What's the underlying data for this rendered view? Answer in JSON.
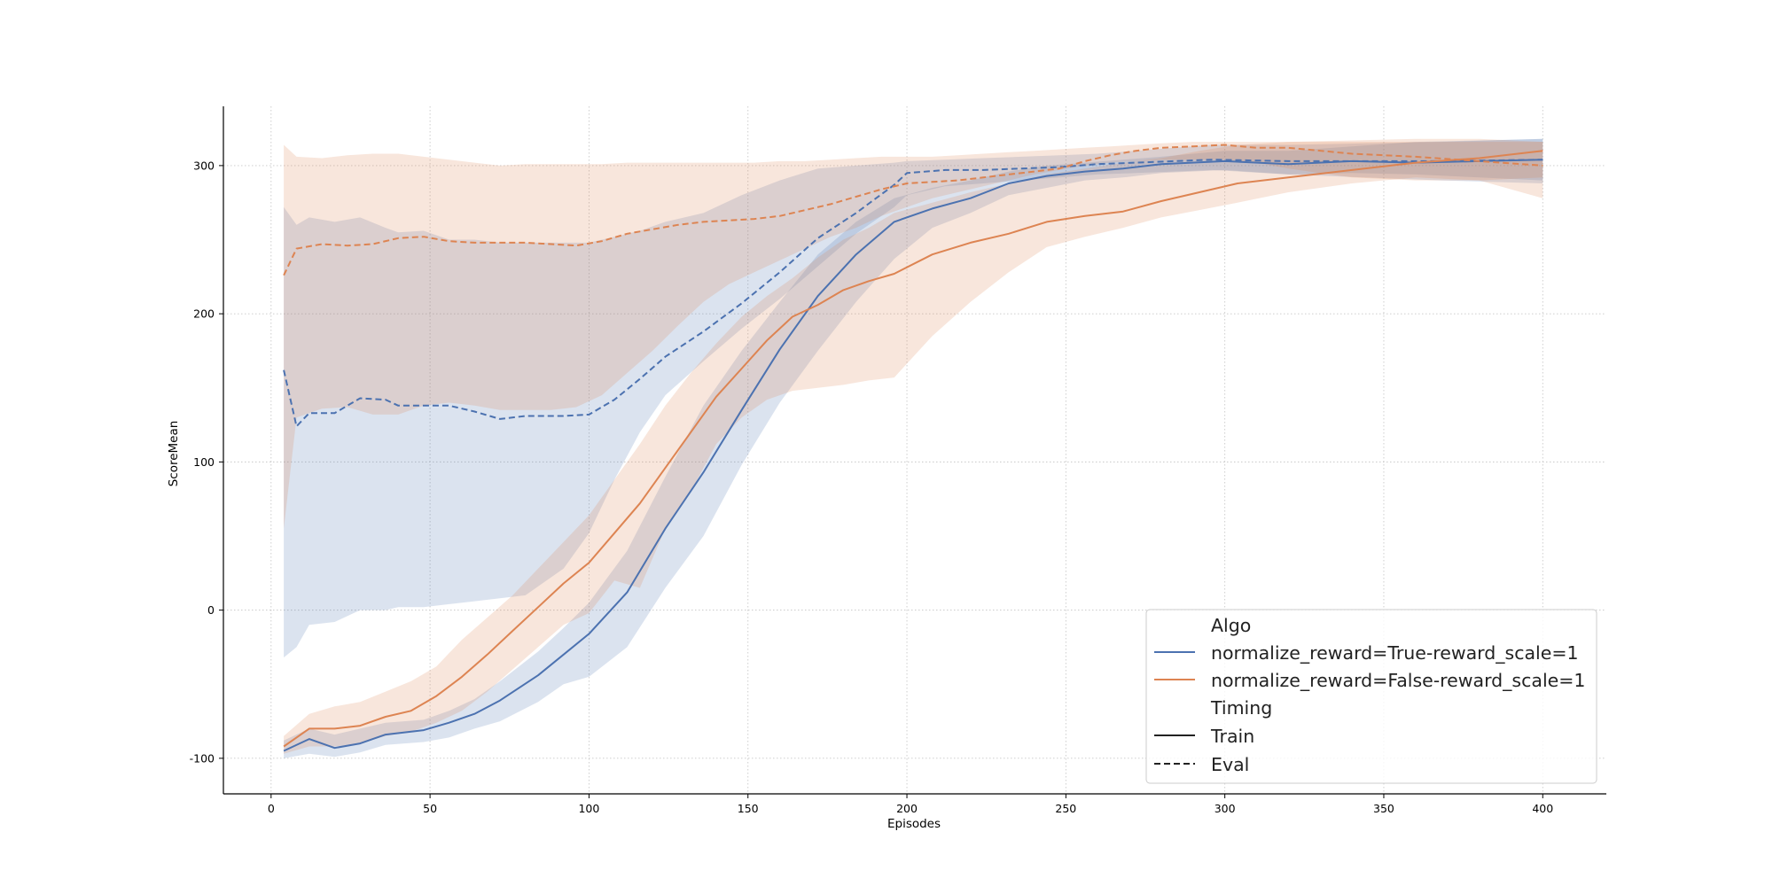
{
  "chart_data": {
    "type": "line",
    "title": "",
    "xlabel": "Episodes",
    "ylabel": "ScoreMean",
    "xlim": [
      -15,
      420
    ],
    "ylim": [
      -124,
      340
    ],
    "xticks": [
      0,
      50,
      100,
      150,
      200,
      250,
      300,
      350,
      400
    ],
    "yticks": [
      -100,
      0,
      100,
      200,
      300
    ],
    "grid": true,
    "legend_position": "lower-right",
    "colors": {
      "true_series": "#4c72b0",
      "false_series": "#dd8452"
    },
    "legend": {
      "algo_title": "Algo",
      "algo_entries": [
        "normalize_reward=True-reward_scale=1",
        "normalize_reward=False-reward_scale=1"
      ],
      "timing_title": "Timing",
      "timing_entries": [
        "Train",
        "Eval"
      ]
    },
    "series": [
      {
        "name": "normalize_reward=True-reward_scale=1 / Train",
        "color": "#4c72b0",
        "dash": "solid",
        "x": [
          4,
          12,
          20,
          28,
          36,
          48,
          56,
          64,
          72,
          84,
          92,
          100,
          112,
          124,
          136,
          148,
          160,
          172,
          184,
          196,
          208,
          220,
          232,
          244,
          256,
          268,
          280,
          300,
          320,
          340,
          360,
          380,
          400
        ],
        "y": [
          -95,
          -87,
          -93,
          -90,
          -84,
          -81,
          -76,
          -70,
          -61,
          -44,
          -30,
          -16,
          12,
          55,
          93,
          135,
          176,
          212,
          240,
          262,
          271,
          278,
          288,
          293,
          296,
          298,
          301,
          303,
          301,
          303,
          302,
          303,
          304
        ],
        "lower": [
          -100,
          -97,
          -99,
          -96,
          -91,
          -89,
          -86,
          -80,
          -75,
          -62,
          -50,
          -45,
          -25,
          15,
          50,
          98,
          140,
          175,
          208,
          237,
          258,
          268,
          280,
          285,
          290,
          292,
          295,
          297,
          294,
          295,
          294,
          292,
          290
        ],
        "upper": [
          -88,
          -80,
          -84,
          -80,
          -76,
          -74,
          -68,
          -60,
          -48,
          -28,
          -12,
          5,
          40,
          90,
          138,
          175,
          208,
          240,
          262,
          278,
          285,
          290,
          296,
          300,
          302,
          304,
          306,
          310,
          310,
          313,
          316,
          317,
          318
        ]
      },
      {
        "name": "normalize_reward=True-reward_scale=1 / Eval",
        "color": "#4c72b0",
        "dash": "dashed",
        "x": [
          4,
          8,
          12,
          20,
          28,
          36,
          40,
          48,
          56,
          64,
          72,
          80,
          92,
          100,
          108,
          116,
          124,
          136,
          148,
          160,
          172,
          184,
          196,
          200,
          212,
          224,
          236,
          248,
          260,
          272,
          284,
          296,
          320,
          344,
          368,
          400
        ],
        "y": [
          162,
          124,
          133,
          133,
          143,
          142,
          138,
          138,
          138,
          134,
          129,
          131,
          131,
          132,
          142,
          156,
          171,
          188,
          207,
          228,
          251,
          268,
          287,
          295,
          297,
          297,
          298,
          299,
          301,
          302,
          303,
          304,
          303,
          303,
          303,
          304
        ],
        "lower": [
          -32,
          -25,
          -10,
          -8,
          0,
          0,
          2,
          2,
          4,
          6,
          8,
          10,
          28,
          52,
          88,
          120,
          145,
          168,
          190,
          210,
          232,
          254,
          272,
          280,
          286,
          288,
          290,
          292,
          294,
          295,
          296,
          297,
          294,
          292,
          290,
          288
        ],
        "upper": [
          272,
          260,
          265,
          262,
          265,
          258,
          255,
          256,
          250,
          250,
          248,
          248,
          248,
          248,
          252,
          256,
          262,
          268,
          280,
          290,
          298,
          300,
          302,
          303,
          304,
          305,
          306,
          307,
          308,
          310,
          312,
          314,
          314,
          315,
          316,
          318
        ]
      },
      {
        "name": "normalize_reward=False-reward_scale=1 / Train",
        "color": "#dd8452",
        "dash": "solid",
        "x": [
          4,
          12,
          20,
          28,
          36,
          44,
          52,
          60,
          68,
          76,
          84,
          92,
          100,
          108,
          116,
          124,
          132,
          140,
          148,
          156,
          164,
          172,
          180,
          188,
          196,
          208,
          220,
          232,
          244,
          256,
          268,
          280,
          292,
          304,
          320,
          340,
          360,
          380,
          400
        ],
        "y": [
          -92,
          -80,
          -80,
          -78,
          -72,
          -68,
          -58,
          -45,
          -30,
          -14,
          2,
          18,
          32,
          52,
          72,
          96,
          120,
          144,
          163,
          182,
          198,
          206,
          216,
          222,
          227,
          240,
          248,
          254,
          262,
          266,
          269,
          276,
          282,
          288,
          292,
          297,
          302,
          305,
          310
        ],
        "lower": [
          -97,
          -92,
          -92,
          -90,
          -85,
          -82,
          -76,
          -68,
          -55,
          -40,
          -25,
          -10,
          -2,
          20,
          15,
          55,
          80,
          112,
          130,
          142,
          148,
          150,
          152,
          155,
          157,
          185,
          208,
          228,
          245,
          252,
          258,
          265,
          270,
          275,
          282,
          288,
          292,
          290,
          278
        ],
        "upper": [
          -85,
          -70,
          -65,
          -62,
          -55,
          -48,
          -38,
          -20,
          -5,
          10,
          28,
          46,
          64,
          88,
          112,
          138,
          160,
          180,
          198,
          212,
          224,
          238,
          250,
          258,
          268,
          275,
          282,
          288,
          294,
          298,
          302,
          305,
          310,
          314,
          316,
          317,
          318,
          318,
          316
        ]
      },
      {
        "name": "normalize_reward=False-reward_scale=1 / Eval",
        "color": "#dd8452",
        "dash": "dashed",
        "x": [
          4,
          8,
          16,
          24,
          32,
          40,
          48,
          56,
          64,
          72,
          80,
          88,
          96,
          104,
          112,
          120,
          128,
          136,
          144,
          152,
          160,
          168,
          176,
          184,
          192,
          200,
          208,
          216,
          224,
          232,
          240,
          248,
          256,
          264,
          272,
          280,
          290,
          300,
          310,
          320,
          340,
          360,
          380,
          400
        ],
        "y": [
          226,
          244,
          247,
          246,
          247,
          251,
          252,
          249,
          248,
          248,
          248,
          247,
          246,
          249,
          254,
          257,
          260,
          262,
          263,
          264,
          266,
          270,
          274,
          279,
          284,
          288,
          289,
          290,
          292,
          294,
          296,
          298,
          303,
          307,
          310,
          312,
          313,
          314,
          312,
          312,
          308,
          306,
          303,
          300
        ],
        "lower": [
          55,
          130,
          136,
          137,
          132,
          132,
          138,
          140,
          138,
          135,
          135,
          135,
          137,
          145,
          160,
          175,
          192,
          208,
          220,
          228,
          236,
          244,
          252,
          258,
          266,
          272,
          278,
          282,
          286,
          290,
          294,
          297,
          300,
          302,
          303,
          304,
          304,
          304,
          302,
          298,
          292,
          290,
          290,
          292
        ],
        "upper": [
          314,
          306,
          305,
          307,
          308,
          308,
          306,
          304,
          302,
          300,
          301,
          301,
          301,
          301,
          302,
          302,
          302,
          302,
          302,
          302,
          303,
          303,
          304,
          305,
          306,
          306,
          306,
          307,
          308,
          309,
          310,
          311,
          312,
          313,
          314,
          315,
          316,
          316,
          316,
          316,
          316,
          316,
          316,
          316
        ]
      }
    ]
  }
}
